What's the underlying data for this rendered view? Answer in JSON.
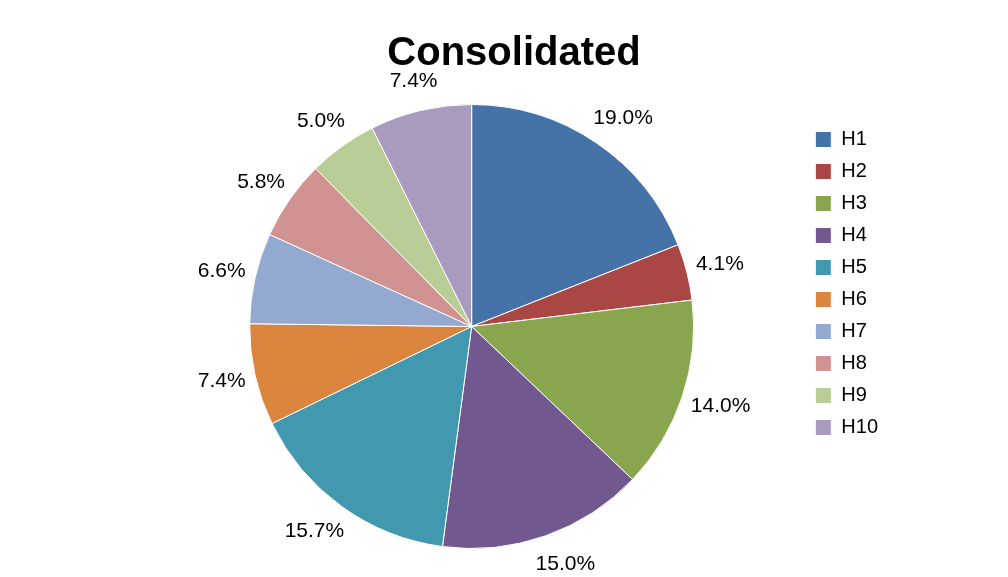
{
  "chart_data": {
    "type": "pie",
    "title": "Consolidated",
    "categories": [
      "H1",
      "H2",
      "H3",
      "H4",
      "H5",
      "H6",
      "H7",
      "H8",
      "H9",
      "H10"
    ],
    "values": [
      19.0,
      4.1,
      14.0,
      15.0,
      15.7,
      7.4,
      6.6,
      5.8,
      5.0,
      7.4
    ],
    "colors": [
      "#4572a7",
      "#aa4643",
      "#89a54e",
      "#71588f",
      "#4198af",
      "#db843d",
      "#93a9cf",
      "#d19392",
      "#b9cd96",
      "#a99bbd"
    ],
    "value_labels": [
      "19.0%",
      "4.1%",
      "14.0%",
      "15.0%",
      "15.7%",
      "7.4%",
      "6.6%",
      "5.8%",
      "5.0%",
      "7.4%"
    ],
    "legend": "right"
  }
}
